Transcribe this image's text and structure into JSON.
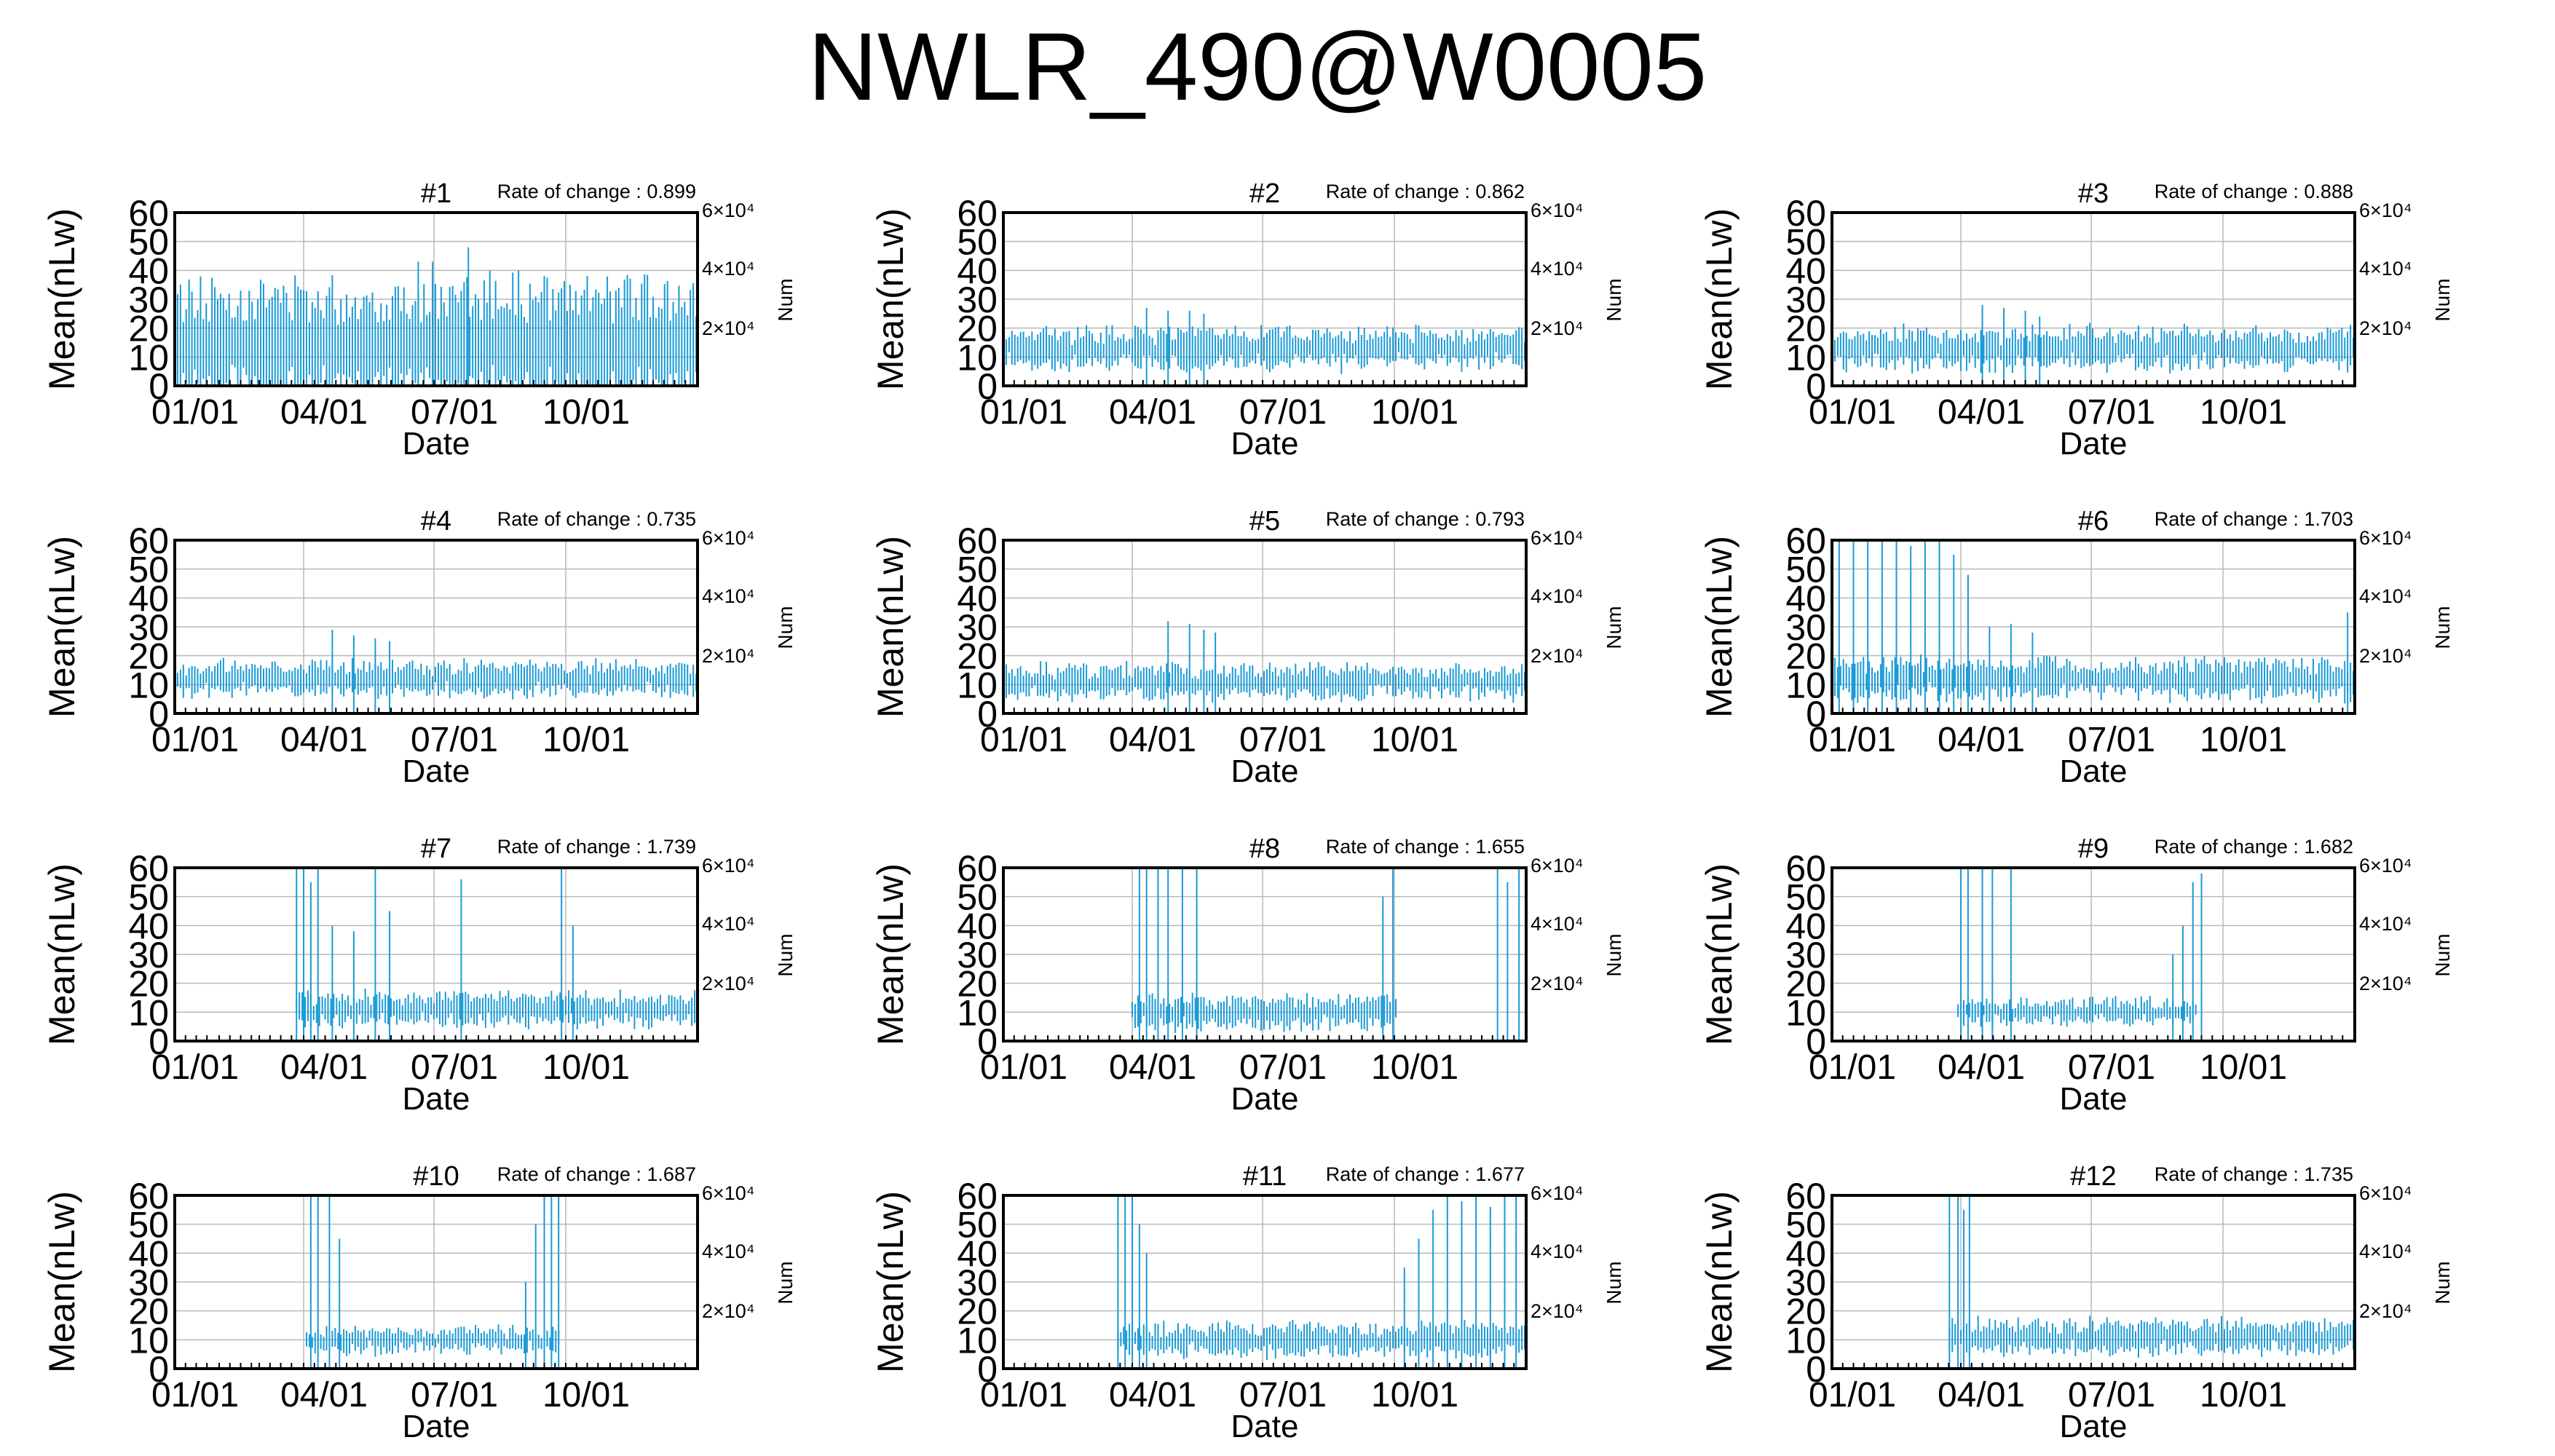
{
  "page": {
    "title": "NWLR_490@W0005"
  },
  "colors": {
    "series": "#1a9ad6",
    "grid": "#b8b8b8",
    "axis": "#000000"
  },
  "chart_data": [
    {
      "type": "line",
      "title": "#1",
      "annotation": "Rate of change : 0.899",
      "xlabel": "Date",
      "ylabel": "Mean(nLw)",
      "y2label": "Num",
      "xticks": [
        "01/01",
        "04/01",
        "07/01",
        "10/01"
      ],
      "yticks": [
        "0",
        "10",
        "20",
        "30",
        "40",
        "50",
        "60"
      ],
      "y2ticks": [
        "2×10⁴",
        "4×10⁴",
        "6×10⁴"
      ],
      "ylim": [
        0,
        60
      ],
      "grid": true,
      "series": [
        {
          "mean": 14,
          "spread": 16,
          "spikes": [
            [
              170,
              43
            ],
            [
              180,
              43
            ],
            [
              205,
              48
            ],
            [
              220,
              40
            ],
            [
              240,
              40
            ]
          ]
        }
      ]
    },
    {
      "type": "line",
      "title": "#2",
      "annotation": "Rate of change : 0.862",
      "xlabel": "Date",
      "ylabel": "Mean(nLw)",
      "y2label": "Num",
      "xticks": [
        "01/01",
        "04/01",
        "07/01",
        "10/01"
      ],
      "yticks": [
        "0",
        "10",
        "20",
        "30",
        "40",
        "50",
        "60"
      ],
      "y2ticks": [
        "2×10⁴",
        "4×10⁴",
        "6×10⁴"
      ],
      "ylim": [
        0,
        60
      ],
      "grid": true,
      "series": [
        {
          "mean": 13,
          "spread": 5,
          "spikes": [
            [
              100,
              27
            ],
            [
              115,
              26
            ],
            [
              130,
              26
            ],
            [
              140,
              25
            ]
          ]
        }
      ]
    },
    {
      "type": "line",
      "title": "#3",
      "annotation": "Rate of change : 0.888",
      "xlabel": "Date",
      "ylabel": "Mean(nLw)",
      "y2label": "Num",
      "xticks": [
        "01/01",
        "04/01",
        "07/01",
        "10/01"
      ],
      "yticks": [
        "0",
        "10",
        "20",
        "30",
        "40",
        "50",
        "60"
      ],
      "y2ticks": [
        "2×10⁴",
        "4×10⁴",
        "6×10⁴"
      ],
      "ylim": [
        0,
        60
      ],
      "grid": true,
      "series": [
        {
          "mean": 13,
          "spread": 5,
          "spikes": [
            [
              105,
              28
            ],
            [
              120,
              27
            ],
            [
              135,
              26
            ],
            [
              145,
              24
            ]
          ]
        }
      ]
    },
    {
      "type": "line",
      "title": "#4",
      "annotation": "Rate of change : 0.735",
      "xlabel": "Date",
      "ylabel": "Mean(nLw)",
      "y2label": "Num",
      "xticks": [
        "01/01",
        "04/01",
        "07/01",
        "10/01"
      ],
      "yticks": [
        "0",
        "10",
        "20",
        "30",
        "40",
        "50",
        "60"
      ],
      "y2ticks": [
        "2×10⁴",
        "4×10⁴",
        "6×10⁴"
      ],
      "ylim": [
        0,
        60
      ],
      "grid": true,
      "series": [
        {
          "mean": 12,
          "spread": 4,
          "spikes": [
            [
              110,
              29
            ],
            [
              125,
              27
            ],
            [
              140,
              26
            ],
            [
              150,
              25
            ]
          ]
        }
      ]
    },
    {
      "type": "line",
      "title": "#5",
      "annotation": "Rate of change : 0.793",
      "xlabel": "Date",
      "ylabel": "Mean(nLw)",
      "y2label": "Num",
      "xticks": [
        "01/01",
        "04/01",
        "07/01",
        "10/01"
      ],
      "yticks": [
        "0",
        "10",
        "20",
        "30",
        "40",
        "50",
        "60"
      ],
      "y2ticks": [
        "2×10⁴",
        "4×10⁴",
        "6×10⁴"
      ],
      "ylim": [
        0,
        60
      ],
      "grid": true,
      "series": [
        {
          "mean": 11,
          "spread": 4,
          "spikes": [
            [
              115,
              32
            ],
            [
              130,
              31
            ],
            [
              140,
              29
            ],
            [
              148,
              28
            ]
          ]
        }
      ]
    },
    {
      "type": "line",
      "title": "#6",
      "annotation": "Rate of change : 1.703",
      "xlabel": "Date",
      "ylabel": "Mean(nLw)",
      "y2label": "Num",
      "xticks": [
        "01/01",
        "04/01",
        "07/01",
        "10/01"
      ],
      "yticks": [
        "0",
        "10",
        "20",
        "30",
        "40",
        "50",
        "60"
      ],
      "y2ticks": [
        "2×10⁴",
        "4×10⁴",
        "6×10⁴"
      ],
      "ylim": [
        0,
        60
      ],
      "grid": true,
      "series": [
        {
          "mean": 12,
          "spread": 5,
          "spikes": [
            [
              5,
              60
            ],
            [
              15,
              60
            ],
            [
              25,
              60
            ],
            [
              35,
              60
            ],
            [
              45,
              60
            ],
            [
              55,
              58
            ],
            [
              65,
              60
            ],
            [
              75,
              60
            ],
            [
              85,
              55
            ],
            [
              95,
              48
            ],
            [
              110,
              30
            ],
            [
              125,
              31
            ],
            [
              140,
              28
            ],
            [
              360,
              35
            ]
          ]
        }
      ]
    },
    {
      "type": "line",
      "title": "#7",
      "annotation": "Rate of change : 1.739",
      "xlabel": "Date",
      "ylabel": "Mean(nLw)",
      "y2label": "Num",
      "xticks": [
        "01/01",
        "04/01",
        "07/01",
        "10/01"
      ],
      "yticks": [
        "0",
        "10",
        "20",
        "30",
        "40",
        "50",
        "60"
      ],
      "y2ticks": [
        "2×10⁴",
        "4×10⁴",
        "6×10⁴"
      ],
      "ylim": [
        0,
        60
      ],
      "grid": true,
      "series": [
        {
          "mean": 11,
          "spread": 4,
          "start": 85,
          "spikes": [
            [
              85,
              60
            ],
            [
              90,
              60
            ],
            [
              95,
              55
            ],
            [
              100,
              60
            ],
            [
              110,
              40
            ],
            [
              125,
              38
            ],
            [
              140,
              60
            ],
            [
              150,
              45
            ],
            [
              200,
              56
            ],
            [
              270,
              60
            ],
            [
              278,
              40
            ]
          ]
        }
      ]
    },
    {
      "type": "line",
      "title": "#8",
      "annotation": "Rate of change : 1.655",
      "xlabel": "Date",
      "ylabel": "Mean(nLw)",
      "y2label": "Num",
      "xticks": [
        "01/01",
        "04/01",
        "07/01",
        "10/01"
      ],
      "yticks": [
        "0",
        "10",
        "20",
        "30",
        "40",
        "50",
        "60"
      ],
      "y2ticks": [
        "2×10⁴",
        "4×10⁴",
        "6×10⁴"
      ],
      "ylim": [
        0,
        60
      ],
      "grid": true,
      "series": [
        {
          "mean": 10,
          "spread": 4,
          "start": 90,
          "end": 275,
          "spikes": [
            [
              95,
              60
            ],
            [
              100,
              60
            ],
            [
              108,
              60
            ],
            [
              115,
              60
            ],
            [
              125,
              60
            ],
            [
              135,
              60
            ],
            [
              265,
              50
            ],
            [
              272,
              60
            ],
            [
              345,
              60
            ],
            [
              352,
              55
            ],
            [
              360,
              60
            ]
          ]
        }
      ]
    },
    {
      "type": "line",
      "title": "#9",
      "annotation": "Rate of change : 1.682",
      "xlabel": "Date",
      "ylabel": "Mean(nLw)",
      "y2label": "Num",
      "xticks": [
        "01/01",
        "04/01",
        "07/01",
        "10/01"
      ],
      "yticks": [
        "0",
        "10",
        "20",
        "30",
        "40",
        "50",
        "60"
      ],
      "y2ticks": [
        "2×10⁴",
        "4×10⁴",
        "6×10⁴"
      ],
      "ylim": [
        0,
        60
      ],
      "grid": true,
      "series": [
        {
          "mean": 10,
          "spread": 3,
          "start": 88,
          "end": 255,
          "spikes": [
            [
              90,
              60
            ],
            [
              95,
              60
            ],
            [
              105,
              60
            ],
            [
              112,
              60
            ],
            [
              125,
              60
            ],
            [
              238,
              30
            ],
            [
              245,
              40
            ],
            [
              252,
              55
            ],
            [
              258,
              58
            ]
          ]
        }
      ]
    },
    {
      "type": "line",
      "title": "#10",
      "annotation": "Rate of change : 1.687",
      "xlabel": "Date",
      "ylabel": "Mean(nLw)",
      "y2label": "Num",
      "xticks": [
        "01/01",
        "04/01",
        "07/01",
        "10/01"
      ],
      "yticks": [
        "0",
        "10",
        "20",
        "30",
        "40",
        "50",
        "60"
      ],
      "y2ticks": [
        "2×10⁴",
        "4×10⁴",
        "6×10⁴"
      ],
      "ylim": [
        0,
        60
      ],
      "grid": true,
      "series": [
        {
          "mean": 10,
          "spread": 3,
          "start": 92,
          "end": 268,
          "spikes": [
            [
              95,
              60
            ],
            [
              100,
              60
            ],
            [
              108,
              60
            ],
            [
              115,
              45
            ],
            [
              245,
              30
            ],
            [
              252,
              50
            ],
            [
              258,
              60
            ],
            [
              263,
              60
            ],
            [
              268,
              60
            ]
          ]
        }
      ]
    },
    {
      "type": "line",
      "title": "#11",
      "annotation": "Rate of change : 1.677",
      "xlabel": "Date",
      "ylabel": "Mean(nLw)",
      "y2label": "Num",
      "xticks": [
        "01/01",
        "04/01",
        "07/01",
        "10/01"
      ],
      "yticks": [
        "0",
        "10",
        "20",
        "30",
        "40",
        "50",
        "60"
      ],
      "y2ticks": [
        "2×10⁴",
        "4×10⁴",
        "6×10⁴"
      ],
      "ylim": [
        0,
        60
      ],
      "grid": true,
      "series": [
        {
          "mean": 10,
          "spread": 4,
          "start": 80,
          "spikes": [
            [
              80,
              60
            ],
            [
              85,
              60
            ],
            [
              90,
              60
            ],
            [
              95,
              50
            ],
            [
              100,
              40
            ],
            [
              280,
              35
            ],
            [
              290,
              45
            ],
            [
              300,
              55
            ],
            [
              310,
              60
            ],
            [
              320,
              58
            ],
            [
              330,
              60
            ],
            [
              340,
              56
            ],
            [
              350,
              60
            ],
            [
              358,
              60
            ]
          ]
        }
      ]
    },
    {
      "type": "line",
      "title": "#12",
      "annotation": "Rate of change : 1.735",
      "xlabel": "Date",
      "ylabel": "Mean(nLw)",
      "y2label": "Num",
      "xticks": [
        "01/01",
        "04/01",
        "07/01",
        "10/01"
      ],
      "yticks": [
        "0",
        "10",
        "20",
        "30",
        "40",
        "50",
        "60"
      ],
      "y2ticks": [
        "2×10⁴",
        "4×10⁴",
        "6×10⁴"
      ],
      "ylim": [
        0,
        60
      ],
      "grid": true,
      "series": [
        {
          "mean": 11,
          "spread": 4,
          "start": 82,
          "spikes": [
            [
              82,
              60
            ],
            [
              88,
              60
            ],
            [
              92,
              55
            ],
            [
              96,
              60
            ]
          ]
        }
      ]
    }
  ]
}
